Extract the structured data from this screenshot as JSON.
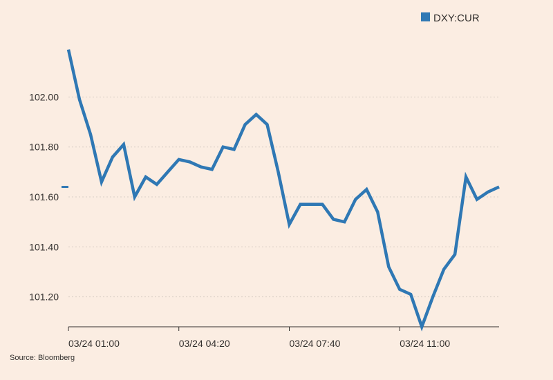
{
  "chart_data": {
    "type": "line",
    "series": [
      {
        "name": "DXY:CUR",
        "color": "#2f78b4",
        "x": [
          0,
          0.333,
          0.667,
          1,
          1.333,
          1.667,
          2,
          2.333,
          2.667,
          3,
          3.333,
          3.667,
          4,
          4.333,
          4.667,
          5,
          5.333,
          5.667,
          6,
          6.333,
          6.667,
          7,
          7.333,
          7.667,
          8,
          8.333,
          8.667,
          9,
          9.333,
          9.667,
          10,
          10.333,
          10.667,
          11,
          11.333,
          11.667,
          12,
          12.333,
          12.667,
          13
        ],
        "values": [
          102.19,
          101.99,
          101.85,
          101.66,
          101.76,
          101.81,
          101.6,
          101.68,
          101.65,
          101.7,
          101.75,
          101.74,
          101.72,
          101.71,
          101.8,
          101.79,
          101.89,
          101.93,
          101.89,
          101.7,
          101.49,
          101.57,
          101.57,
          101.57,
          101.51,
          101.5,
          101.59,
          101.63,
          101.54,
          101.32,
          101.23,
          101.21,
          101.08,
          101.2,
          101.31,
          101.37,
          101.68,
          101.59,
          101.62,
          101.64
        ]
      }
    ],
    "xlim": [
      0,
      13
    ],
    "ylim": [
      101.08,
      102.25
    ],
    "x_ticks": [
      {
        "value": 0,
        "label": "03/24 01:00"
      },
      {
        "value": 3.333,
        "label": "03/24 04:20"
      },
      {
        "value": 6.667,
        "label": "03/24 07:40"
      },
      {
        "value": 10,
        "label": "03/24 11:00"
      }
    ],
    "y_ticks": [
      {
        "value": 101.2,
        "label": "101.20"
      },
      {
        "value": 101.4,
        "label": "101.40"
      },
      {
        "value": 101.6,
        "label": "101.60"
      },
      {
        "value": 101.8,
        "label": "101.80"
      },
      {
        "value": 102.0,
        "label": "102.00"
      }
    ],
    "previous_close": 101.64,
    "grid": "horizontal-dotted",
    "legend": "top-right",
    "title": "",
    "xlabel": "",
    "ylabel": ""
  },
  "source": "Source: Bloomberg",
  "colors": {
    "background": "#fbede2",
    "line": "#2f78b4",
    "grid": "#d9cec5",
    "axis": "#33302e"
  }
}
